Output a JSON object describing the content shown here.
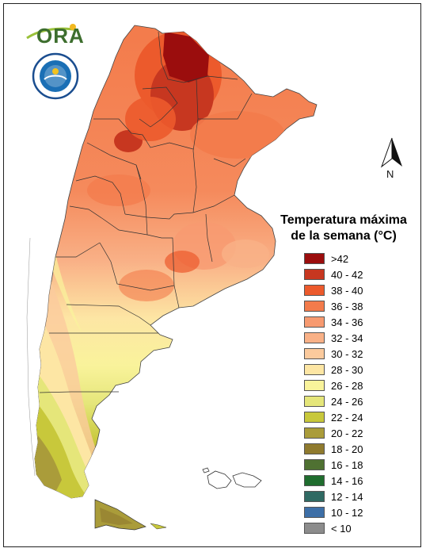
{
  "logo": {
    "wordmark": "ORA",
    "seal_icon": "smn-seal-icon"
  },
  "north_arrow": {
    "label": "N"
  },
  "legend": {
    "title_line1": "Temperatura máxima",
    "title_line2": "de la semana (°C)",
    "items": [
      {
        "label": ">42",
        "color": "#9b0d0d"
      },
      {
        "label": "40 - 42",
        "color": "#c73720"
      },
      {
        "label": "38 - 40",
        "color": "#ec5a2c"
      },
      {
        "label": "36 - 38",
        "color": "#f37b4b"
      },
      {
        "label": "34 - 36",
        "color": "#f79a70"
      },
      {
        "label": "32 - 34",
        "color": "#f9b187"
      },
      {
        "label": "30 - 32",
        "color": "#fbca9d"
      },
      {
        "label": "28 - 30",
        "color": "#fde6a4"
      },
      {
        "label": "26 - 28",
        "color": "#f9f39b"
      },
      {
        "label": "24 - 26",
        "color": "#e5e67a"
      },
      {
        "label": "22 - 24",
        "color": "#c8c83b"
      },
      {
        "label": "20 - 22",
        "color": "#aa9c3a"
      },
      {
        "label": "18 - 20",
        "color": "#8f7a2e"
      },
      {
        "label": "16 - 18",
        "color": "#4f7132"
      },
      {
        "label": "14 - 16",
        "color": "#1f6d2e"
      },
      {
        "label": "12 - 14",
        "color": "#2f6a63"
      },
      {
        "label": "10 - 12",
        "color": "#3d6fa7"
      },
      {
        "label": "< 10",
        "color": "#8c8c8c"
      }
    ]
  }
}
